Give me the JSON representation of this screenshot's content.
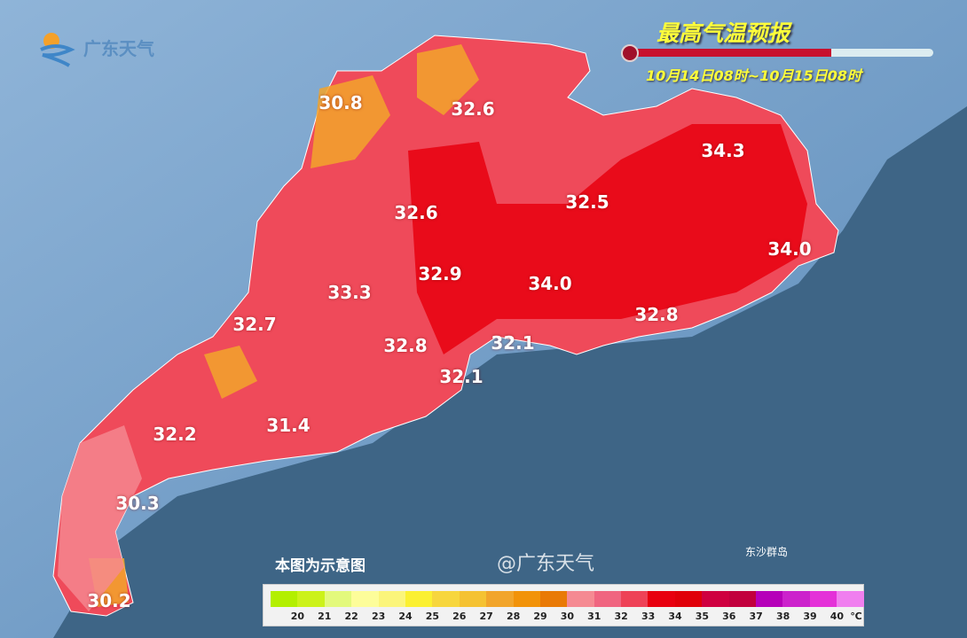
{
  "logo": {
    "text": "广东天气"
  },
  "header": {
    "title": "最高气温预报",
    "period": "10月14日08时~10月15日08时"
  },
  "map": {
    "region": "Guangdong",
    "labels": [
      {
        "value": "30.8"
      },
      {
        "value": "32.6"
      },
      {
        "value": "34.3"
      },
      {
        "value": "32.6"
      },
      {
        "value": "32.5"
      },
      {
        "value": "34.0"
      },
      {
        "value": "32.9"
      },
      {
        "value": "34.0"
      },
      {
        "value": "33.3"
      },
      {
        "value": "32.7"
      },
      {
        "value": "32.8"
      },
      {
        "value": "32.8"
      },
      {
        "value": "32.1"
      },
      {
        "value": "32.1"
      },
      {
        "value": "32.2"
      },
      {
        "value": "31.4"
      },
      {
        "value": "30.3"
      },
      {
        "value": "30.2"
      }
    ],
    "island_label": "东沙群岛",
    "note": "本图为示意图"
  },
  "legend": {
    "colors": [
      "#b3ef00",
      "#ccf21a",
      "#e3f97c",
      "#fdfd9a",
      "#fbf57b",
      "#fbf031",
      "#f7d63d",
      "#f5c232",
      "#f2a52b",
      "#f29309",
      "#e97a06",
      "#f58a92",
      "#f06580",
      "#ee4257",
      "#e8000f",
      "#e00009",
      "#cf0040",
      "#c2003d",
      "#b600b9",
      "#cc22cc",
      "#e431d8",
      "#f07fef"
    ],
    "ticks": [
      "20",
      "21",
      "22",
      "23",
      "24",
      "25",
      "26",
      "27",
      "28",
      "29",
      "30",
      "31",
      "32",
      "33",
      "34",
      "35",
      "36",
      "37",
      "38",
      "39",
      "40"
    ],
    "unit": "℃"
  },
  "watermark": "@广东天气"
}
